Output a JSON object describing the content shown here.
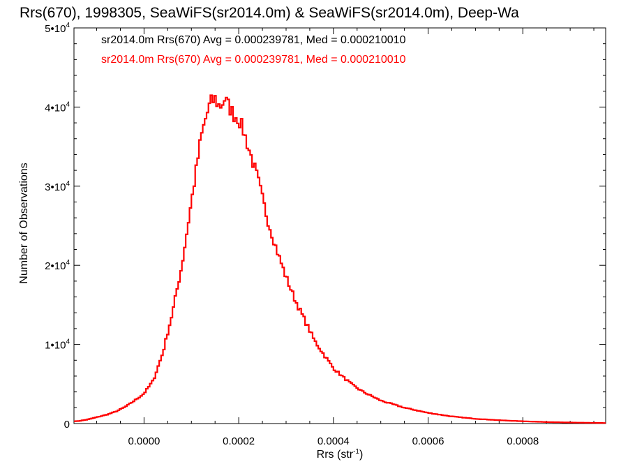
{
  "chart_data": {
    "type": "step",
    "title": "Rrs(670), 1998305, SeaWiFS(sr2014.0m) & SeaWiFS(sr2014.0m), Deep-Wa",
    "xlabel": "Rrs (str",
    "xlabel_sup": "-1",
    "xlabel_end": ")",
    "ylabel": "Number of Observations",
    "xlim": [
      -0.000148,
      0.000975
    ],
    "ylim": [
      0,
      50000
    ],
    "x_ticks": [
      0.0,
      0.0002,
      0.0004,
      0.0006,
      0.0008
    ],
    "x_tick_labels": [
      "0.0000",
      "0.0002",
      "0.0004",
      "0.0006",
      "0.0008"
    ],
    "y_ticks": [
      0,
      10000,
      20000,
      30000,
      40000,
      50000
    ],
    "y_tick_labels": [
      {
        "base": "0",
        "exp": ""
      },
      {
        "base": "1•10",
        "exp": "4"
      },
      {
        "base": "2•10",
        "exp": "4"
      },
      {
        "base": "3•10",
        "exp": "4"
      },
      {
        "base": "4•10",
        "exp": "4"
      },
      {
        "base": "5•10",
        "exp": "4"
      }
    ],
    "annotations": [
      {
        "text": "sr2014.0m Rrs(670) Avg = 0.000239781, Med = 0.000210010",
        "color": "#000000"
      },
      {
        "text": "sr2014.0m Rrs(670) Avg = 0.000239781, Med = 0.000210010",
        "color": "#ff0000"
      }
    ],
    "series": [
      {
        "color": "#ff0000",
        "overlay_color": "#000000",
        "bin_width": 4e-06,
        "x": [
          -0.00014,
          -0.00012,
          -0.0001,
          -8e-05,
          -6e-05,
          -4e-05,
          -2e-05,
          0.0,
          2e-05,
          4e-05,
          6e-05,
          8e-05,
          0.0001,
          0.00011,
          0.00012,
          0.00013,
          0.00014,
          0.00015,
          0.00016,
          0.00017,
          0.00018,
          0.00019,
          0.0002,
          0.00021,
          0.00022,
          0.00024,
          0.00026,
          0.00028,
          0.0003,
          0.00032,
          0.00034,
          0.00036,
          0.00038,
          0.0004,
          0.00042,
          0.00044,
          0.00046,
          0.00048,
          0.0005,
          0.00055,
          0.0006,
          0.00065,
          0.0007,
          0.00075,
          0.0008,
          0.00085,
          0.0009,
          0.00097
        ],
        "y": [
          300,
          500,
          800,
          1100,
          1500,
          2100,
          2900,
          3800,
          5500,
          9000,
          14000,
          20000,
          28000,
          32000,
          36000,
          38500,
          40500,
          41000,
          40000,
          41000,
          40000,
          39000,
          38500,
          37000,
          35000,
          31000,
          26000,
          22000,
          18500,
          15500,
          13000,
          10500,
          8700,
          7000,
          5900,
          4900,
          4100,
          3500,
          2900,
          2000,
          1350,
          900,
          600,
          420,
          290,
          190,
          130,
          70
        ]
      }
    ]
  }
}
